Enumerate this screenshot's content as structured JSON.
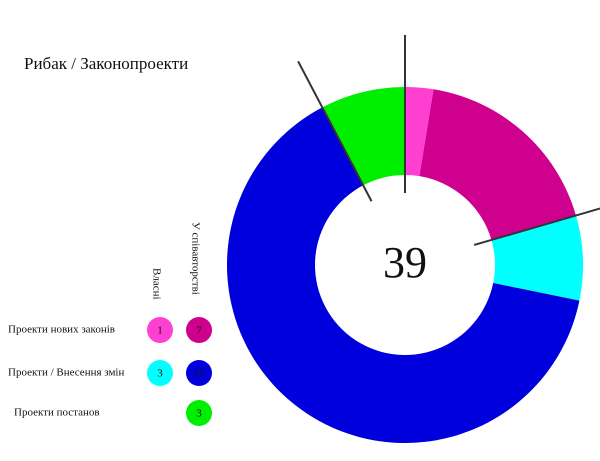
{
  "chart_data": {
    "type": "donut",
    "title": "Рибак  / Законопроекти",
    "total": 39,
    "categories": [
      "Проекти нових законів",
      "Проекти / Внесення змін",
      "Проекти постанов"
    ],
    "series": [
      {
        "name": "Власні",
        "values": [
          1,
          3,
          null
        ],
        "colors": [
          "#ff3fd2",
          "#00ffff",
          null
        ]
      },
      {
        "name": "У співавторстві",
        "values": [
          7,
          25,
          3
        ],
        "colors": [
          "#d0008f",
          "#0000dd",
          "#00ee00"
        ]
      }
    ]
  }
}
